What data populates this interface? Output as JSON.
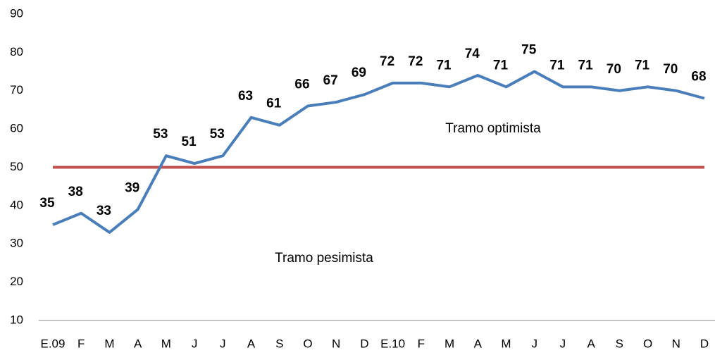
{
  "chart_data": {
    "type": "line",
    "categories": [
      "E.09",
      "F",
      "M",
      "A",
      "M",
      "J",
      "J",
      "A",
      "S",
      "O",
      "N",
      "D",
      "E.10",
      "F",
      "M",
      "A",
      "M",
      "J",
      "J",
      "A",
      "S",
      "O",
      "N",
      "D"
    ],
    "values": [
      35,
      38,
      33,
      39,
      53,
      51,
      53,
      63,
      61,
      66,
      67,
      69,
      72,
      72,
      71,
      74,
      71,
      75,
      71,
      71,
      70,
      71,
      70,
      68
    ],
    "color": "#4a7ebb",
    "reference_line": {
      "value": 50,
      "color": "#c0504d"
    },
    "annotations": [
      "Tramo optimista",
      "Tramo pesimista"
    ],
    "ylim": [
      10,
      90
    ],
    "yticks": [
      10,
      20,
      30,
      40,
      50,
      60,
      70,
      80,
      90
    ],
    "grid": false
  }
}
